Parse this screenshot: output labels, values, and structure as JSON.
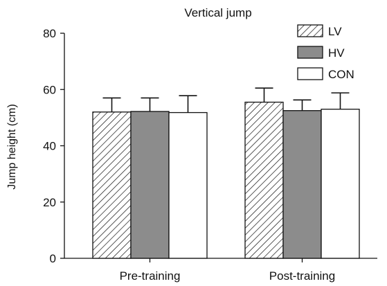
{
  "chart_data": {
    "type": "bar",
    "title": "Vertical jump",
    "xlabel": "",
    "ylabel": "Jump height (cm)",
    "ylim": [
      0,
      80
    ],
    "yticks": [
      0,
      20,
      40,
      60,
      80
    ],
    "categories": [
      "Pre-training",
      "Post-training"
    ],
    "series": [
      {
        "name": "LV",
        "values": [
          52,
          55.5
        ],
        "errors": [
          5,
          5
        ],
        "fill": "hatch"
      },
      {
        "name": "HV",
        "values": [
          52.2,
          52.5
        ],
        "errors": [
          4.8,
          3.8
        ],
        "fill": "#8c8c8c"
      },
      {
        "name": "CON",
        "values": [
          51.8,
          53
        ],
        "errors": [
          6,
          5.8
        ],
        "fill": "#ffffff"
      }
    ],
    "legend_position": "top-right",
    "grid": false
  }
}
